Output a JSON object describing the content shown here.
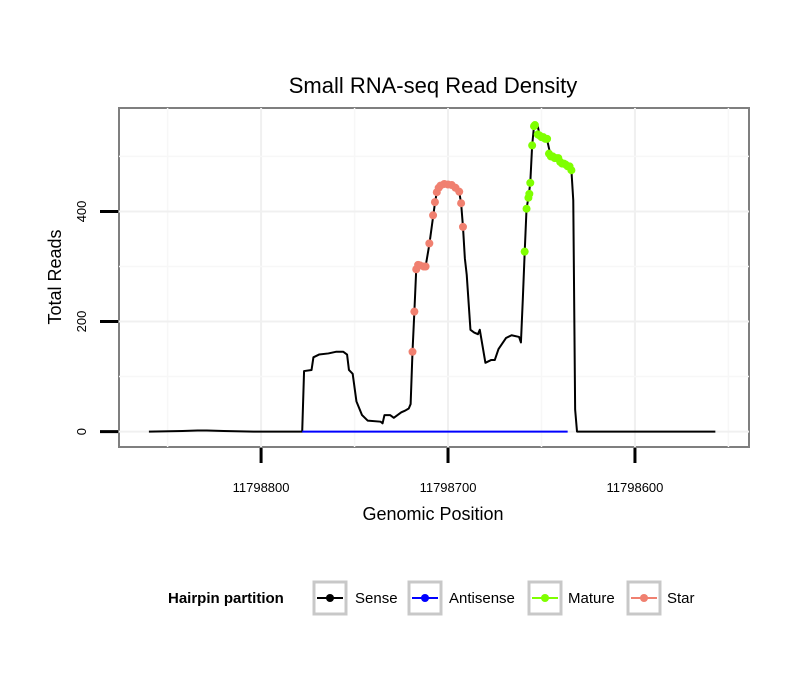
{
  "chart_data": {
    "type": "line",
    "title": "Small RNA-seq Read Density",
    "xlabel": "Genomic Position",
    "ylabel": "Total Reads",
    "x_reversed": true,
    "xlim": [
      11798876,
      11798539
    ],
    "ylim": [
      -28,
      588
    ],
    "x_ticks": [
      11798800,
      11798700,
      11798600
    ],
    "x_tick_labels": [
      "11798800",
      "11798700",
      "11798600"
    ],
    "y_ticks": [
      0,
      200,
      400
    ],
    "y_tick_labels": [
      "0",
      "200",
      "400"
    ],
    "grid": true,
    "legend": {
      "title": "Hairpin partition",
      "position": "bottom",
      "entries": [
        {
          "name": "Sense",
          "color": "#000000"
        },
        {
          "name": "Antisense",
          "color": "#0000ff"
        },
        {
          "name": "Mature",
          "color": "#7fff00"
        },
        {
          "name": "Star",
          "color": "#f08070"
        }
      ]
    },
    "series": [
      {
        "name": "Sense",
        "color": "#000000",
        "style": "line",
        "points": [
          [
            11798860,
            0
          ],
          [
            11798842,
            1
          ],
          [
            11798834,
            2
          ],
          [
            11798829,
            2
          ],
          [
            11798820,
            1
          ],
          [
            11798804,
            0
          ],
          [
            11798778,
            0
          ],
          [
            11798777,
            110
          ],
          [
            11798773,
            112
          ],
          [
            11798772,
            135
          ],
          [
            11798769,
            140
          ],
          [
            11798764,
            142
          ],
          [
            11798760,
            145
          ],
          [
            11798756,
            145
          ],
          [
            11798754,
            140
          ],
          [
            11798753,
            112
          ],
          [
            11798751,
            105
          ],
          [
            11798749,
            55
          ],
          [
            11798746,
            30
          ],
          [
            11798743,
            20
          ],
          [
            11798736,
            18
          ],
          [
            11798735,
            15
          ],
          [
            11798734,
            30
          ],
          [
            11798731,
            30
          ],
          [
            11798729,
            25
          ],
          [
            11798725,
            35
          ],
          [
            11798723,
            38
          ],
          [
            11798721,
            42
          ],
          [
            11798720,
            50
          ],
          [
            11798719,
            145
          ],
          [
            11798718,
            218
          ],
          [
            11798717,
            295
          ],
          [
            11798715,
            302
          ],
          [
            11798712,
            300
          ],
          [
            11798710,
            340
          ],
          [
            11798708,
            390
          ],
          [
            11798707,
            415
          ],
          [
            11798706,
            435
          ],
          [
            11798704,
            445
          ],
          [
            11798702,
            450
          ],
          [
            11798698,
            450
          ],
          [
            11798696,
            445
          ],
          [
            11798694,
            435
          ],
          [
            11798693,
            415
          ],
          [
            11798692,
            372
          ],
          [
            11798691,
            315
          ],
          [
            11798690,
            285
          ],
          [
            11798688,
            185
          ],
          [
            11798686,
            180
          ],
          [
            11798684,
            177
          ],
          [
            11798683,
            185
          ],
          [
            11798680,
            125
          ],
          [
            11798677,
            130
          ],
          [
            11798675,
            130
          ],
          [
            11798673,
            150
          ],
          [
            11798669,
            170
          ],
          [
            11798666,
            175
          ],
          [
            11798662,
            172
          ],
          [
            11798661,
            162
          ],
          [
            11798660,
            240
          ],
          [
            11798659,
            325
          ],
          [
            11798658,
            405
          ],
          [
            11798657,
            425
          ],
          [
            11798656,
            452
          ],
          [
            11798655,
            520
          ],
          [
            11798654,
            555
          ],
          [
            11798652,
            555
          ],
          [
            11798651,
            538
          ],
          [
            11798649,
            535
          ],
          [
            11798648,
            532
          ],
          [
            11798647,
            530
          ],
          [
            11798645,
            500
          ],
          [
            11798643,
            497
          ],
          [
            11798641,
            497
          ],
          [
            11798639,
            487
          ],
          [
            11798637,
            485
          ],
          [
            11798635,
            482
          ],
          [
            11798634,
            475
          ],
          [
            11798633,
            420
          ],
          [
            11798632,
            40
          ],
          [
            11798631,
            0
          ],
          [
            11798600,
            0
          ],
          [
            11798557,
            0
          ]
        ]
      },
      {
        "name": "Antisense",
        "color": "#0000ff",
        "style": "line",
        "points": [
          [
            11798778,
            0
          ],
          [
            11798636,
            0
          ]
        ]
      },
      {
        "name": "Star",
        "color": "#f08070",
        "style": "points",
        "points": [
          [
            11798719,
            145
          ],
          [
            11798718,
            218
          ],
          [
            11798717,
            295
          ],
          [
            11798716,
            303
          ],
          [
            11798715,
            302
          ],
          [
            11798713,
            300
          ],
          [
            11798712,
            300
          ],
          [
            11798710,
            342
          ],
          [
            11798708,
            393
          ],
          [
            11798707,
            417
          ],
          [
            11798706,
            435
          ],
          [
            11798705,
            443
          ],
          [
            11798704,
            447
          ],
          [
            11798702,
            450
          ],
          [
            11798700,
            449
          ],
          [
            11798698,
            448
          ],
          [
            11798696,
            443
          ],
          [
            11798694,
            436
          ],
          [
            11798693,
            415
          ],
          [
            11798692,
            372
          ]
        ]
      },
      {
        "name": "Mature",
        "color": "#7fff00",
        "style": "points",
        "points": [
          [
            11798659,
            327
          ],
          [
            11798658,
            405
          ],
          [
            11798657,
            425
          ],
          [
            11798656.5,
            432
          ],
          [
            11798656,
            452
          ],
          [
            11798655,
            520
          ],
          [
            11798654,
            555
          ],
          [
            11798653.5,
            557
          ],
          [
            11798652,
            540
          ],
          [
            11798651,
            538
          ],
          [
            11798650,
            535
          ],
          [
            11798649,
            535
          ],
          [
            11798648,
            532
          ],
          [
            11798647,
            532
          ],
          [
            11798646,
            505
          ],
          [
            11798645,
            500
          ],
          [
            11798644,
            500
          ],
          [
            11798643,
            497
          ],
          [
            11798642,
            497
          ],
          [
            11798641,
            497
          ],
          [
            11798640,
            490
          ],
          [
            11798639,
            487
          ],
          [
            11798638,
            487
          ],
          [
            11798637,
            485
          ],
          [
            11798636,
            482
          ],
          [
            11798635,
            482
          ],
          [
            11798634,
            475
          ]
        ]
      }
    ]
  }
}
